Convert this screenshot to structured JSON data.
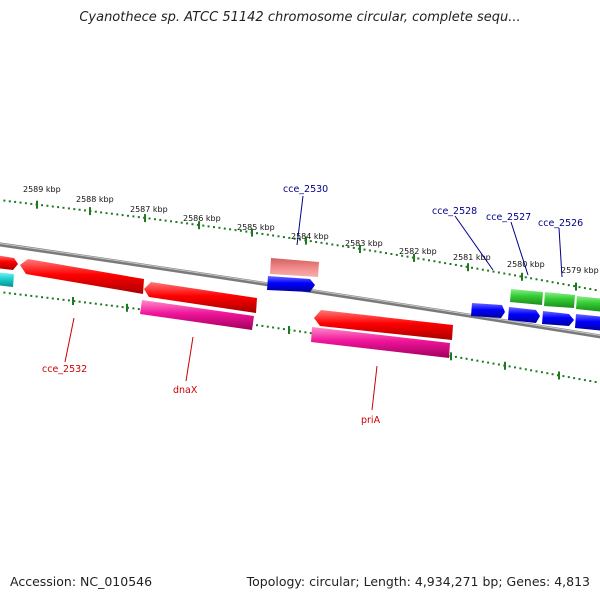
{
  "title": "Cyanothece sp. ATCC 51142 chromosome circular, complete sequ...",
  "footer": {
    "accession": "Accession: NC_010546",
    "summary": "Topology: circular; Length: 4,934,271 bp; Genes: 4,813"
  },
  "colors": {
    "backbone": "#808080",
    "ticks": "#1f7a1f",
    "red_gene": "#ff0000",
    "magenta_gene": "#ff1a9b",
    "pink_gene": "#f08080",
    "blue_gene": "#0000ff",
    "green_gene": "#33cc33",
    "cyan_gene": "#19d2d2",
    "label_blue": "#00008b",
    "label_red": "#cc0000"
  },
  "kbp_labels": [
    "2589 kbp",
    "2588 kbp",
    "2587 kbp",
    "2586 kbp",
    "2585 kbp",
    "2584 kbp",
    "2583 kbp",
    "2582 kbp",
    "2581 kbp",
    "2580 kbp",
    "2579 kbp"
  ],
  "gene_labels": [
    {
      "text": "cce_2530",
      "color": "label_blue"
    },
    {
      "text": "cce_2528",
      "color": "label_blue"
    },
    {
      "text": "cce_2527",
      "color": "label_blue"
    },
    {
      "text": "cce_2526",
      "color": "label_blue"
    },
    {
      "text": "cce_2532",
      "color": "label_red"
    },
    {
      "text": "dnaX",
      "color": "label_red"
    },
    {
      "text": "priA",
      "color": "label_red"
    }
  ]
}
